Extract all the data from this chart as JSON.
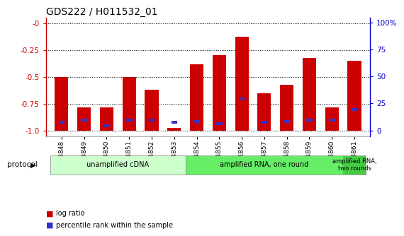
{
  "title": "GDS222 / H011532_01",
  "samples": [
    "GSM4848",
    "GSM4849",
    "GSM4850",
    "GSM4851",
    "GSM4852",
    "GSM4853",
    "GSM4854",
    "GSM4855",
    "GSM4856",
    "GSM4857",
    "GSM4858",
    "GSM4859",
    "GSM4860",
    "GSM4861"
  ],
  "log_ratio": [
    -0.5,
    -0.78,
    -0.78,
    -0.5,
    -0.62,
    -0.97,
    -0.38,
    -0.3,
    -0.13,
    -0.65,
    -0.57,
    -0.32,
    -0.78,
    -0.35
  ],
  "percentile": [
    0.08,
    0.1,
    0.05,
    0.1,
    0.1,
    0.08,
    0.09,
    0.07,
    0.3,
    0.08,
    0.09,
    0.1,
    0.1,
    0.2
  ],
  "bar_color": "#cc0000",
  "blue_color": "#3333cc",
  "ylim_left": [
    -1.05,
    0.05
  ],
  "ylim_right": [
    -5.5,
    104.5
  ],
  "yticks_left": [
    -1.0,
    -0.75,
    -0.5,
    -0.25,
    0.0
  ],
  "yticks_right": [
    0,
    25,
    50,
    75,
    100
  ],
  "ytick_labels_right": [
    "0",
    "25",
    "50",
    "75",
    "100%"
  ],
  "left_axis_color": "#cc0000",
  "right_axis_color": "#0000cc",
  "protocol_groups": [
    {
      "label": "unamplified cDNA",
      "start": 0,
      "end": 5,
      "color": "#ccffcc"
    },
    {
      "label": "amplified RNA, one round",
      "start": 6,
      "end": 12,
      "color": "#66ee66"
    },
    {
      "label": "amplified RNA,\ntwo rounds",
      "start": 13,
      "end": 13,
      "color": "#44cc44"
    }
  ],
  "legend_items": [
    {
      "label": "log ratio",
      "color": "#cc0000"
    },
    {
      "label": "percentile rank within the sample",
      "color": "#3333cc"
    }
  ],
  "protocol_label": "protocol",
  "bar_width": 0.6,
  "background_color": "#ffffff"
}
